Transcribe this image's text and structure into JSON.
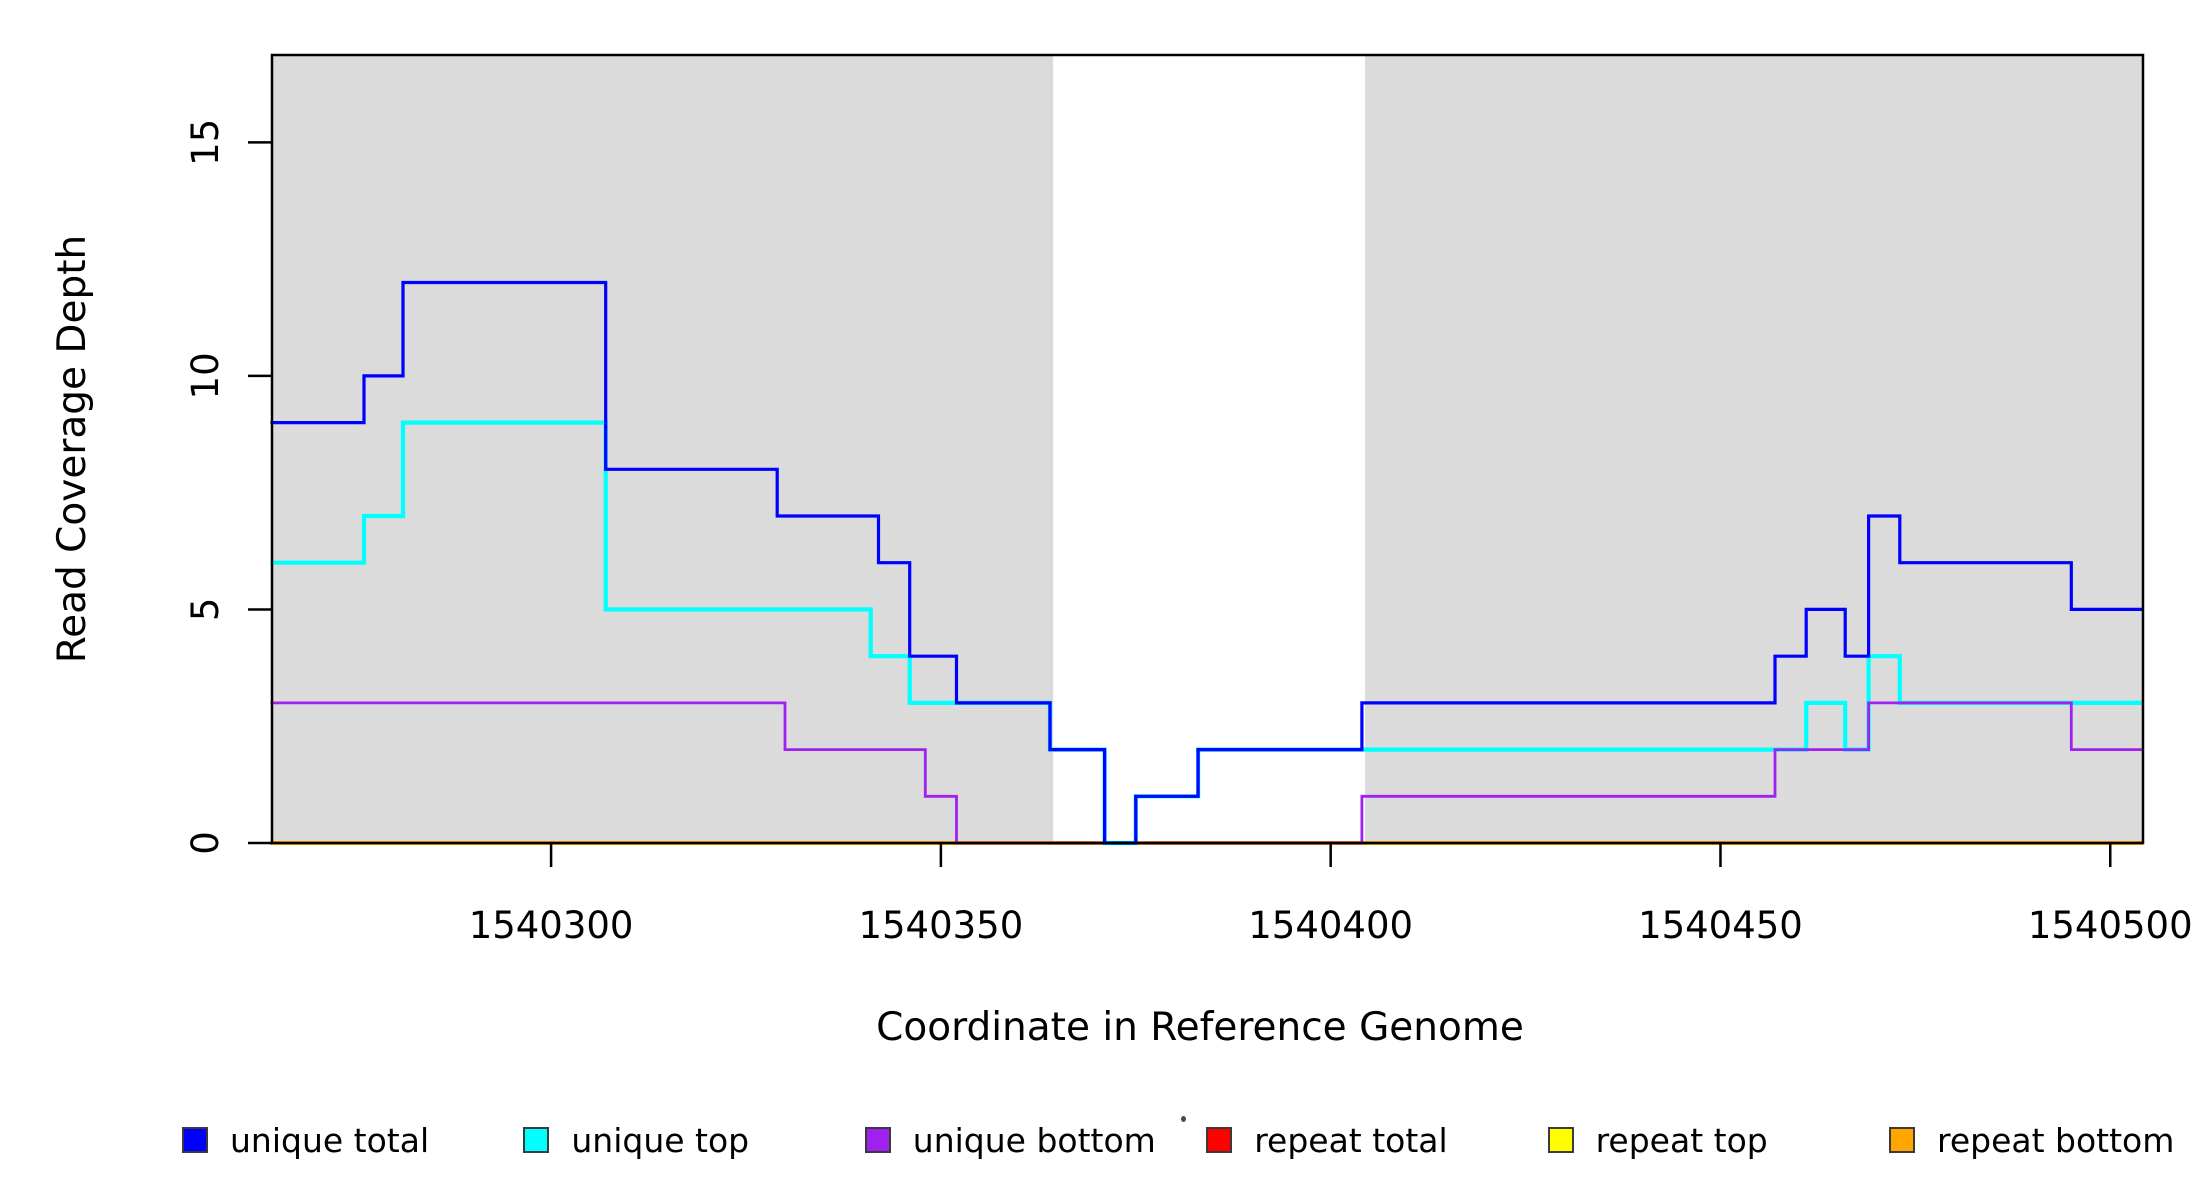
{
  "chart_data": {
    "type": "line",
    "subtype": "step-coverage",
    "title": "",
    "xlabel": "Coordinate in Reference Genome",
    "ylabel": "Read Coverage Depth",
    "xlim": [
      1540264.2,
      1540504.2
    ],
    "ylim": [
      0,
      16.87
    ],
    "grid": false,
    "x_ticks": {
      "values": [
        1540300,
        1540350,
        1540400,
        1540450,
        1540500
      ],
      "labels": [
        "1540300",
        "1540350",
        "1540400",
        "1540450",
        "1540500"
      ]
    },
    "y_ticks": {
      "values": [
        0,
        5,
        10,
        15
      ],
      "labels": [
        "0",
        "5",
        "10",
        "15"
      ]
    },
    "shaded_regions": {
      "color": "#dbdbdb",
      "bands": [
        [
          1540264.2,
          1540364.4
        ],
        [
          1540404.4,
          1540504.2
        ]
      ]
    },
    "series": [
      {
        "name": "unique_total",
        "label": "unique total",
        "color": "#0000ff",
        "start": [
          1540264,
          9
        ],
        "steps": [
          [
            1540276,
            10
          ],
          [
            1540281,
            12
          ],
          [
            1540307,
            8
          ],
          [
            1540329,
            7
          ],
          [
            1540342,
            6
          ],
          [
            1540346,
            4
          ],
          [
            1540352,
            3
          ],
          [
            1540364,
            2
          ],
          [
            1540371,
            0
          ],
          [
            1540375,
            1
          ],
          [
            1540383,
            2
          ],
          [
            1540404,
            3
          ],
          [
            1540457,
            4
          ],
          [
            1540461,
            5
          ],
          [
            1540466,
            4
          ],
          [
            1540469,
            7
          ],
          [
            1540473,
            6
          ],
          [
            1540495,
            5
          ]
        ],
        "end_x": 1540504.2
      },
      {
        "name": "unique_top",
        "label": "unique top",
        "color": "#00ffff",
        "start": [
          1540264,
          6
        ],
        "steps": [
          [
            1540276,
            7
          ],
          [
            1540281,
            9
          ],
          [
            1540307,
            5
          ],
          [
            1540341,
            4
          ],
          [
            1540346,
            3
          ],
          [
            1540364,
            2
          ],
          [
            1540371,
            0
          ],
          [
            1540375,
            1
          ],
          [
            1540383,
            2
          ],
          [
            1540461,
            3
          ],
          [
            1540466,
            2
          ],
          [
            1540469,
            4
          ],
          [
            1540473,
            3
          ]
        ],
        "end_x": 1540504.2
      },
      {
        "name": "unique_bottom",
        "label": "unique bottom",
        "color": "#a020f0",
        "start": [
          1540264,
          3
        ],
        "steps": [
          [
            1540330,
            2
          ],
          [
            1540348,
            1
          ],
          [
            1540352,
            0
          ],
          [
            1540404,
            1
          ],
          [
            1540457,
            2
          ],
          [
            1540469,
            3
          ],
          [
            1540495,
            2
          ]
        ],
        "end_x": 1540504.2
      },
      {
        "name": "repeat_total",
        "label": "repeat total",
        "color": "#ff0000",
        "start": [
          1540264,
          0
        ],
        "steps": [],
        "end_x": 1540504.2
      },
      {
        "name": "repeat_top",
        "label": "repeat top",
        "color": "#ffff00",
        "start": [
          1540264,
          0
        ],
        "steps": [],
        "end_x": 1540504.2
      },
      {
        "name": "repeat_bottom",
        "label": "repeat bottom",
        "color": "#ffa500",
        "start": [
          1540264,
          0
        ],
        "steps": [],
        "end_x": 1540504.2
      }
    ],
    "legend": {
      "position": "bottom",
      "items": [
        "unique total",
        "unique top",
        "unique bottom",
        "repeat total",
        "repeat top",
        "repeat bottom"
      ]
    }
  }
}
